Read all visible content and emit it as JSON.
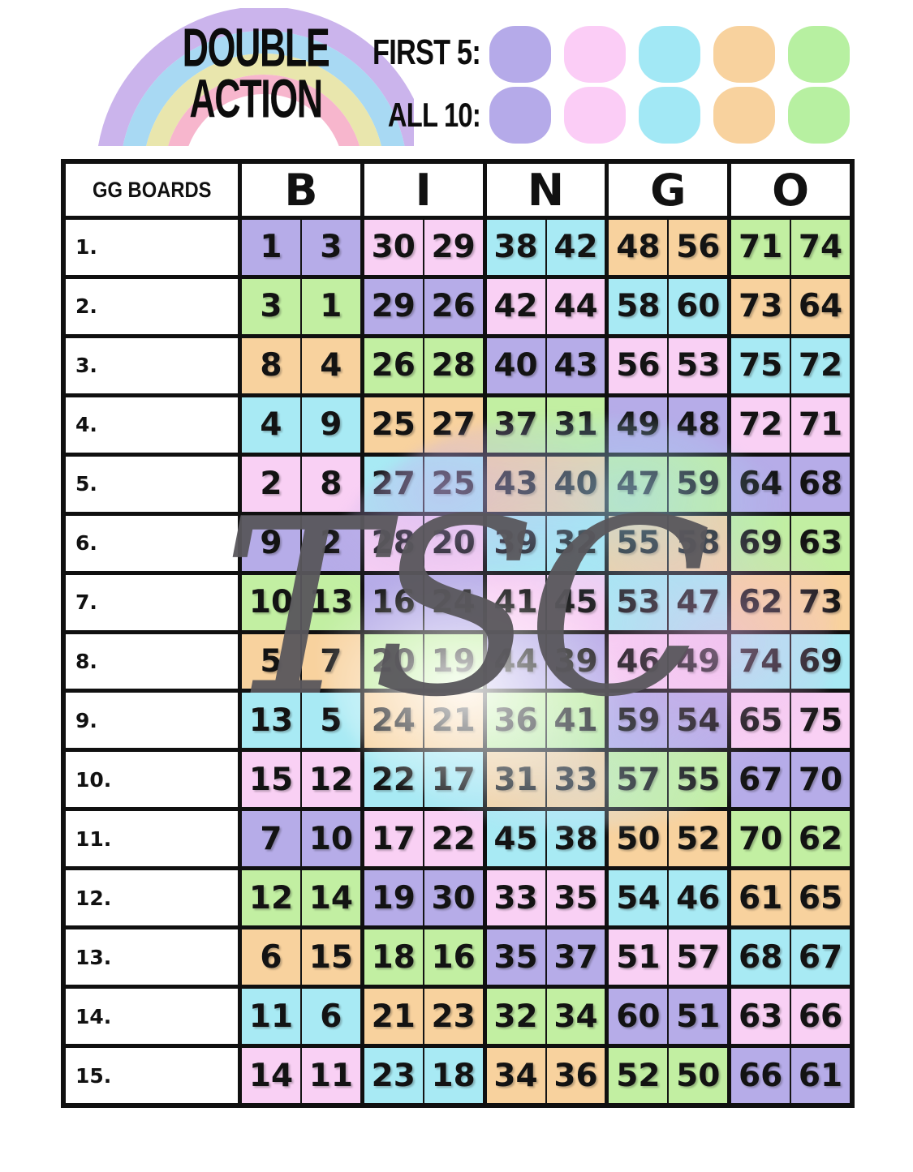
{
  "header": {
    "title_line1": "DOUBLE",
    "title_line2": "ACTION",
    "first5_label": "FIRST 5:",
    "all10_label": "ALL 10:",
    "dabber_colors": [
      "#b5aae9",
      "#fbcdf6",
      "#a2e8f5",
      "#f8d29e",
      "#b7f0a1"
    ],
    "rainbow_colors": [
      "#cbb4ec",
      "#a8d9f3",
      "#e9e6ad",
      "#f7b6cd"
    ]
  },
  "watermark": "TSC",
  "board": {
    "corner_label": "GG BOARDS",
    "letters": [
      "B",
      "I",
      "N",
      "G",
      "O"
    ],
    "palette": {
      "purple": "#b6ace8",
      "pink": "#f9d0f4",
      "cyan": "#a8eaf4",
      "orange": "#f8d29e",
      "green": "#c2efa2"
    },
    "rows": [
      {
        "label": "1.",
        "colors": [
          "purple",
          "pink",
          "cyan",
          "orange",
          "green"
        ],
        "numbers": [
          [
            1,
            3
          ],
          [
            30,
            29
          ],
          [
            38,
            42
          ],
          [
            48,
            56
          ],
          [
            71,
            74
          ]
        ]
      },
      {
        "label": "2.",
        "colors": [
          "green",
          "purple",
          "pink",
          "cyan",
          "orange"
        ],
        "numbers": [
          [
            3,
            1
          ],
          [
            29,
            26
          ],
          [
            42,
            44
          ],
          [
            58,
            60
          ],
          [
            73,
            64
          ]
        ]
      },
      {
        "label": "3.",
        "colors": [
          "orange",
          "green",
          "purple",
          "pink",
          "cyan"
        ],
        "numbers": [
          [
            8,
            4
          ],
          [
            26,
            28
          ],
          [
            40,
            43
          ],
          [
            56,
            53
          ],
          [
            75,
            72
          ]
        ]
      },
      {
        "label": "4.",
        "colors": [
          "cyan",
          "orange",
          "green",
          "purple",
          "pink"
        ],
        "numbers": [
          [
            4,
            9
          ],
          [
            25,
            27
          ],
          [
            37,
            31
          ],
          [
            49,
            48
          ],
          [
            72,
            71
          ]
        ]
      },
      {
        "label": "5.",
        "colors": [
          "pink",
          "cyan",
          "orange",
          "green",
          "purple"
        ],
        "numbers": [
          [
            2,
            8
          ],
          [
            27,
            25
          ],
          [
            43,
            40
          ],
          [
            47,
            59
          ],
          [
            64,
            68
          ]
        ]
      },
      {
        "label": "6.",
        "colors": [
          "purple",
          "pink",
          "cyan",
          "orange",
          "green"
        ],
        "numbers": [
          [
            9,
            2
          ],
          [
            28,
            20
          ],
          [
            39,
            32
          ],
          [
            55,
            58
          ],
          [
            69,
            63
          ]
        ]
      },
      {
        "label": "7.",
        "colors": [
          "green",
          "purple",
          "pink",
          "cyan",
          "orange"
        ],
        "numbers": [
          [
            10,
            13
          ],
          [
            16,
            24
          ],
          [
            41,
            45
          ],
          [
            53,
            47
          ],
          [
            62,
            73
          ]
        ]
      },
      {
        "label": "8.",
        "colors": [
          "orange",
          "green",
          "purple",
          "pink",
          "cyan"
        ],
        "numbers": [
          [
            5,
            7
          ],
          [
            20,
            19
          ],
          [
            44,
            39
          ],
          [
            46,
            49
          ],
          [
            74,
            69
          ]
        ]
      },
      {
        "label": "9.",
        "colors": [
          "cyan",
          "orange",
          "green",
          "purple",
          "pink"
        ],
        "numbers": [
          [
            13,
            5
          ],
          [
            24,
            21
          ],
          [
            36,
            41
          ],
          [
            59,
            54
          ],
          [
            65,
            75
          ]
        ]
      },
      {
        "label": "10.",
        "colors": [
          "pink",
          "cyan",
          "orange",
          "green",
          "purple"
        ],
        "numbers": [
          [
            15,
            12
          ],
          [
            22,
            17
          ],
          [
            31,
            33
          ],
          [
            57,
            55
          ],
          [
            67,
            70
          ]
        ]
      },
      {
        "label": "11.",
        "colors": [
          "purple",
          "pink",
          "cyan",
          "orange",
          "green"
        ],
        "numbers": [
          [
            7,
            10
          ],
          [
            17,
            22
          ],
          [
            45,
            38
          ],
          [
            50,
            52
          ],
          [
            70,
            62
          ]
        ]
      },
      {
        "label": "12.",
        "colors": [
          "green",
          "purple",
          "pink",
          "cyan",
          "orange"
        ],
        "numbers": [
          [
            12,
            14
          ],
          [
            19,
            30
          ],
          [
            33,
            35
          ],
          [
            54,
            46
          ],
          [
            61,
            65
          ]
        ]
      },
      {
        "label": "13.",
        "colors": [
          "orange",
          "green",
          "purple",
          "pink",
          "cyan"
        ],
        "numbers": [
          [
            6,
            15
          ],
          [
            18,
            16
          ],
          [
            35,
            37
          ],
          [
            51,
            57
          ],
          [
            68,
            67
          ]
        ]
      },
      {
        "label": "14.",
        "colors": [
          "cyan",
          "orange",
          "green",
          "purple",
          "pink"
        ],
        "numbers": [
          [
            11,
            6
          ],
          [
            21,
            23
          ],
          [
            32,
            34
          ],
          [
            60,
            51
          ],
          [
            63,
            66
          ]
        ]
      },
      {
        "label": "15.",
        "colors": [
          "pink",
          "cyan",
          "orange",
          "green",
          "purple"
        ],
        "numbers": [
          [
            14,
            11
          ],
          [
            23,
            18
          ],
          [
            34,
            36
          ],
          [
            52,
            50
          ],
          [
            66,
            61
          ]
        ]
      }
    ]
  }
}
